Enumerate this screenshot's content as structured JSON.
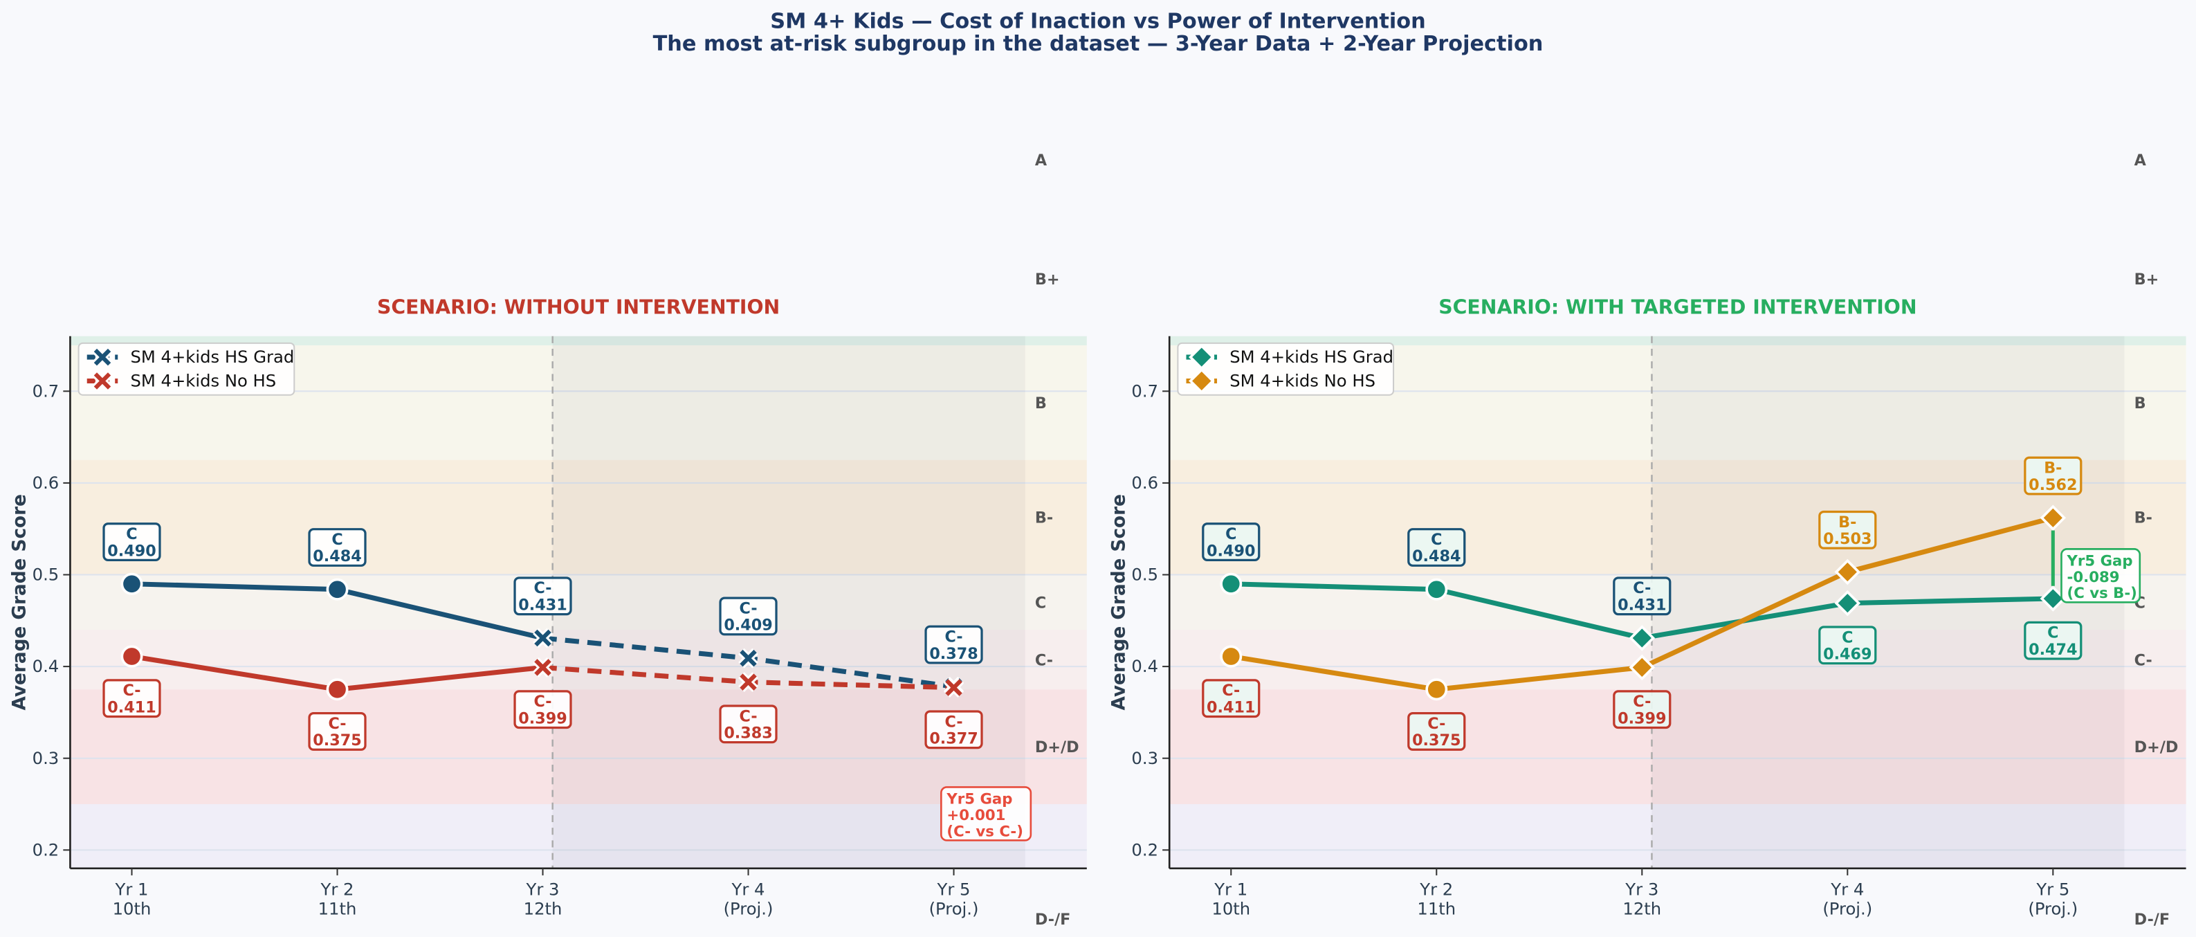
{
  "title": "SM 4+ Kids — Cost of Inaction vs Power of Intervention",
  "subtitle": "The most at-risk subgroup in the dataset — 3-Year Data + 2-Year Projection",
  "colors": {
    "background": "#f8f9fc",
    "title": "#1f3864"
  },
  "grade_bands": [
    {
      "grade": "A",
      "lo": 0.89,
      "hi": 1.0,
      "color": "#dff0e8"
    },
    {
      "grade": "B+",
      "lo": 0.75,
      "hi": 0.89,
      "color": "#dff0e8"
    },
    {
      "grade": "B",
      "lo": 0.625,
      "hi": 0.75,
      "color": "#f7f6ec"
    },
    {
      "grade": "B-",
      "lo": 0.5,
      "hi": 0.625,
      "color": "#f8eedf"
    },
    {
      "grade": "C",
      "lo": 0.44,
      "hi": 0.5,
      "color": "#f6f3ee"
    },
    {
      "grade": "C-",
      "lo": 0.375,
      "hi": 0.44,
      "color": "#f7eeee"
    },
    {
      "grade": "D+/D",
      "lo": 0.25,
      "hi": 0.375,
      "color": "#f8e3e5"
    },
    {
      "grade": "D-/F",
      "lo": 0.0,
      "hi": 0.25,
      "color": "#f0eef8"
    }
  ],
  "chart_data": [
    {
      "type": "line",
      "title": "SCENARIO: WITHOUT INTERVENTION",
      "title_color": "#c0392b",
      "ylabel": "Average Grade Score",
      "xlabel": "",
      "categories": [
        "Yr 1\n10th",
        "Yr 2\n11th",
        "Yr 3\n12th",
        "Yr 4\n(Proj.)",
        "Yr 5\n(Proj.)"
      ],
      "ylim": [
        0.18,
        0.76
      ],
      "yticks": [
        "0.2",
        "0.3",
        "0.4",
        "0.5",
        "0.6",
        "0.7"
      ],
      "grid": true,
      "legend": "top-left",
      "projection_region": "Yr 3 to Yr 5",
      "series": [
        {
          "name": "SM 4+kids HS Grad",
          "color": "#1a5276",
          "values": [
            0.49,
            0.484,
            0.431,
            0.409,
            0.378
          ],
          "grades": [
            "C",
            "C",
            "C-",
            "C-",
            "C-"
          ],
          "markers": [
            "circle",
            "circle",
            "x",
            "x",
            "x"
          ],
          "projected_line": "dashed"
        },
        {
          "name": "SM 4+kids No HS",
          "color": "#c0392b",
          "values": [
            0.411,
            0.375,
            0.399,
            0.383,
            0.377
          ],
          "grades": [
            "C-",
            "C-",
            "C-",
            "C-",
            "C-"
          ],
          "markers": [
            "circle",
            "circle",
            "x",
            "x",
            "x"
          ],
          "projected_line": "dashed"
        }
      ],
      "annotation": {
        "lines": [
          "Yr5 Gap",
          "+0.001",
          "(C- vs C-)"
        ],
        "color": "#e74c3c"
      }
    },
    {
      "type": "line",
      "title": "SCENARIO: WITH TARGETED INTERVENTION",
      "title_color": "#27ae60",
      "ylabel": "Average Grade Score",
      "xlabel": "",
      "categories": [
        "Yr 1\n10th",
        "Yr 2\n11th",
        "Yr 3\n12th",
        "Yr 4\n(Proj.)",
        "Yr 5\n(Proj.)"
      ],
      "ylim": [
        0.18,
        0.76
      ],
      "yticks": [
        "0.2",
        "0.3",
        "0.4",
        "0.5",
        "0.6",
        "0.7"
      ],
      "grid": true,
      "legend": "top-left",
      "projection_region": "Yr 3 to Yr 5",
      "series": [
        {
          "name": "SM 4+kids HS Grad",
          "color": "#148f77",
          "values": [
            0.49,
            0.484,
            0.431,
            0.469,
            0.474
          ],
          "grades": [
            "C",
            "C",
            "C-",
            "C",
            "C"
          ],
          "markers": [
            "circle",
            "circle",
            "diamond",
            "diamond",
            "diamond"
          ],
          "projected_line": "solid",
          "label_colors": [
            "#1a5276",
            "#1a5276",
            "#1a5276",
            "#148f77",
            "#148f77"
          ]
        },
        {
          "name": "SM 4+kids No HS",
          "color": "#d68910",
          "values": [
            0.411,
            0.375,
            0.399,
            0.503,
            0.562
          ],
          "grades": [
            "C-",
            "C-",
            "C-",
            "B-",
            "B-"
          ],
          "markers": [
            "circle",
            "circle",
            "diamond",
            "diamond",
            "diamond"
          ],
          "projected_line": "solid",
          "label_colors": [
            "#c0392b",
            "#c0392b",
            "#c0392b",
            "#d68910",
            "#d68910"
          ]
        }
      ],
      "annotation": {
        "lines": [
          "Yr5 Gap",
          "-0.089",
          "(C vs B-)"
        ],
        "color": "#27ae60"
      }
    }
  ]
}
